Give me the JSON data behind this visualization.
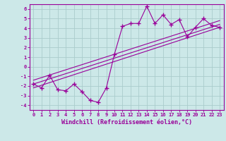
{
  "title": "",
  "xlabel": "Windchill (Refroidissement éolien,°C)",
  "ylabel": "",
  "bg_color": "#cce8e8",
  "grid_color": "#aacccc",
  "line_color": "#990099",
  "xlim": [
    -0.5,
    23.5
  ],
  "ylim": [
    -4.5,
    6.5
  ],
  "xticks": [
    0,
    1,
    2,
    3,
    4,
    5,
    6,
    7,
    8,
    9,
    10,
    11,
    12,
    13,
    14,
    15,
    16,
    17,
    18,
    19,
    20,
    21,
    22,
    23
  ],
  "yticks": [
    -4,
    -3,
    -2,
    -1,
    0,
    1,
    2,
    3,
    4,
    5,
    6
  ],
  "scatter_x": [
    0,
    1,
    2,
    3,
    4,
    5,
    6,
    7,
    8,
    9,
    10,
    11,
    12,
    13,
    14,
    15,
    16,
    17,
    18,
    19,
    20,
    21,
    22,
    23
  ],
  "scatter_y": [
    -1.8,
    -2.2,
    -0.9,
    -2.4,
    -2.5,
    -1.8,
    -2.6,
    -3.5,
    -3.7,
    -2.2,
    1.3,
    4.2,
    4.5,
    4.5,
    6.3,
    4.5,
    5.4,
    4.4,
    4.9,
    3.1,
    4.1,
    5.0,
    4.3,
    4.1
  ],
  "line1_x": [
    0,
    23
  ],
  "line1_y": [
    -2.2,
    4.1
  ],
  "line2_x": [
    0,
    23
  ],
  "line2_y": [
    -1.8,
    4.4
  ],
  "line3_x": [
    0,
    23
  ],
  "line3_y": [
    -1.4,
    4.8
  ],
  "marker": "+",
  "markersize": 4,
  "linewidth": 0.8,
  "xlabel_fontsize": 6,
  "tick_fontsize": 5,
  "font_color": "#990099"
}
